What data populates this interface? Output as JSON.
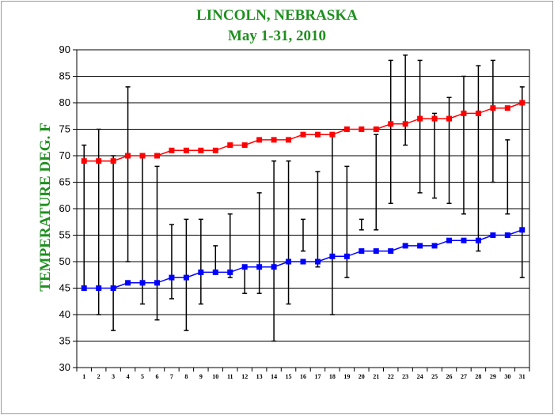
{
  "chart_data": {
    "type": "line",
    "title": "LINCOLN, NEBRASKA",
    "subtitle": "May 1-31, 2010",
    "ylabel": "TEMPERATURE DEG. F",
    "xlabel": "",
    "ylim": [
      30,
      90
    ],
    "yticks": [
      30,
      35,
      40,
      45,
      50,
      55,
      60,
      65,
      70,
      75,
      80,
      85,
      90
    ],
    "grid": "horizontal",
    "x": [
      1,
      2,
      3,
      4,
      5,
      6,
      7,
      8,
      9,
      10,
      11,
      12,
      13,
      14,
      15,
      16,
      17,
      18,
      19,
      20,
      21,
      22,
      23,
      24,
      25,
      26,
      27,
      28,
      29,
      30,
      31
    ],
    "series": [
      {
        "color": "#ff0000",
        "values": [
          69,
          69,
          69,
          70,
          70,
          70,
          71,
          71,
          71,
          71,
          72,
          72,
          73,
          73,
          73,
          74,
          74,
          74,
          75,
          75,
          75,
          76,
          76,
          77,
          77,
          77,
          78,
          78,
          79,
          79,
          80
        ]
      },
      {
        "color": "#0000ff",
        "values": [
          45,
          45,
          45,
          46,
          46,
          46,
          47,
          47,
          48,
          48,
          48,
          49,
          49,
          49,
          50,
          50,
          50,
          51,
          51,
          52,
          52,
          52,
          53,
          53,
          53,
          54,
          54,
          54,
          55,
          55,
          56
        ]
      }
    ],
    "ranges": [
      [
        45,
        72
      ],
      [
        40,
        75
      ],
      [
        37,
        70
      ],
      [
        50,
        83
      ],
      [
        42,
        70
      ],
      [
        39,
        68
      ],
      [
        43,
        57
      ],
      [
        37,
        58
      ],
      [
        42,
        58
      ],
      [
        48,
        53
      ],
      [
        47,
        59
      ],
      [
        44,
        49
      ],
      [
        44,
        63
      ],
      [
        35,
        69
      ],
      [
        42,
        69
      ],
      [
        52,
        58
      ],
      [
        49,
        67
      ],
      [
        40,
        74
      ],
      [
        47,
        68
      ],
      [
        56,
        58
      ],
      [
        56,
        74
      ],
      [
        61,
        88
      ],
      [
        72,
        89
      ],
      [
        63,
        88
      ],
      [
        62,
        78
      ],
      [
        61,
        81
      ],
      [
        59,
        85
      ],
      [
        52,
        87
      ],
      [
        65,
        88
      ],
      [
        59,
        73
      ],
      [
        47,
        83
      ]
    ]
  }
}
